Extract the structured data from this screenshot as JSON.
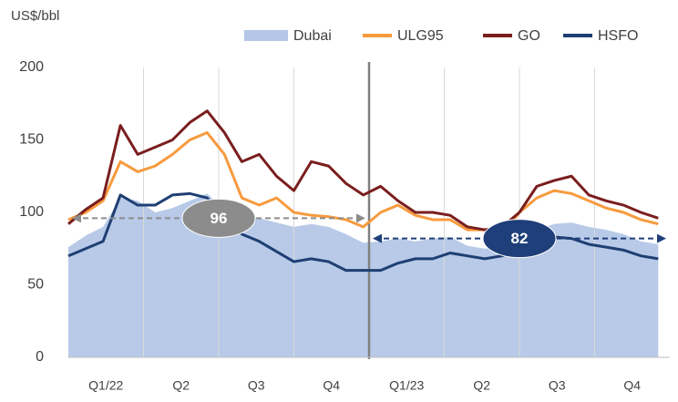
{
  "chart_data": {
    "type": "line",
    "y_label": "US$/bbl",
    "x": [
      0,
      3,
      6,
      9,
      12,
      15,
      18,
      21,
      24,
      27,
      30,
      33,
      36,
      39,
      42,
      45,
      48,
      51,
      54,
      57,
      60,
      63,
      66,
      69,
      72,
      75,
      78,
      81,
      84,
      87,
      90,
      93,
      96,
      99,
      102
    ],
    "xlim": [
      0,
      104
    ],
    "xticks": [
      {
        "value": 6.5,
        "label": "Q1/22"
      },
      {
        "value": 19.5,
        "label": "Q2"
      },
      {
        "value": 32.5,
        "label": "Q3"
      },
      {
        "value": 45.5,
        "label": "Q4"
      },
      {
        "value": 58.5,
        "label": "Q1/23"
      },
      {
        "value": 71.5,
        "label": "Q2"
      },
      {
        "value": 84.5,
        "label": "Q3"
      },
      {
        "value": 97.5,
        "label": "Q4"
      }
    ],
    "xgrid": [
      13,
      26,
      39,
      65,
      78,
      91
    ],
    "divider": 52,
    "ylim": [
      0,
      200
    ],
    "yticks": [
      0,
      50,
      100,
      150,
      200
    ],
    "series": [
      {
        "name": "Dubai",
        "color": "#b4c7e7",
        "area": true,
        "values": [
          76,
          84,
          90,
          110,
          108,
          100,
          103,
          108,
          113,
          102,
          98,
          96,
          93,
          90,
          92,
          90,
          85,
          79,
          80,
          82,
          80,
          82,
          83,
          77,
          75,
          76,
          82,
          88,
          92,
          93,
          90,
          88,
          85,
          80,
          78
        ]
      },
      {
        "name": "ULG95",
        "color": "#f79a3e",
        "values": [
          95,
          100,
          108,
          135,
          128,
          132,
          140,
          150,
          155,
          140,
          110,
          105,
          110,
          100,
          98,
          97,
          95,
          90,
          100,
          105,
          98,
          95,
          95,
          88,
          88,
          85,
          100,
          110,
          115,
          113,
          108,
          103,
          100,
          95,
          92
        ]
      },
      {
        "name": "GO",
        "color": "#7a1e1e",
        "values": [
          92,
          102,
          110,
          160,
          140,
          145,
          150,
          162,
          170,
          155,
          135,
          140,
          125,
          115,
          135,
          132,
          120,
          112,
          118,
          108,
          100,
          100,
          98,
          90,
          88,
          90,
          100,
          118,
          122,
          125,
          112,
          108,
          105,
          100,
          96
        ]
      },
      {
        "name": "HSFO",
        "color": "#1f3f73",
        "values": [
          70,
          75,
          80,
          112,
          105,
          105,
          112,
          113,
          110,
          98,
          85,
          80,
          73,
          66,
          68,
          66,
          60,
          60,
          60,
          65,
          68,
          68,
          72,
          70,
          68,
          70,
          75,
          80,
          83,
          82,
          78,
          76,
          74,
          70,
          68
        ]
      }
    ],
    "averages": [
      {
        "value": 96,
        "from": 0,
        "to": 52,
        "color": "#8c8c8c"
      },
      {
        "value": 82,
        "from": 52,
        "to": 104,
        "color": "#1f3f7a"
      }
    ]
  }
}
